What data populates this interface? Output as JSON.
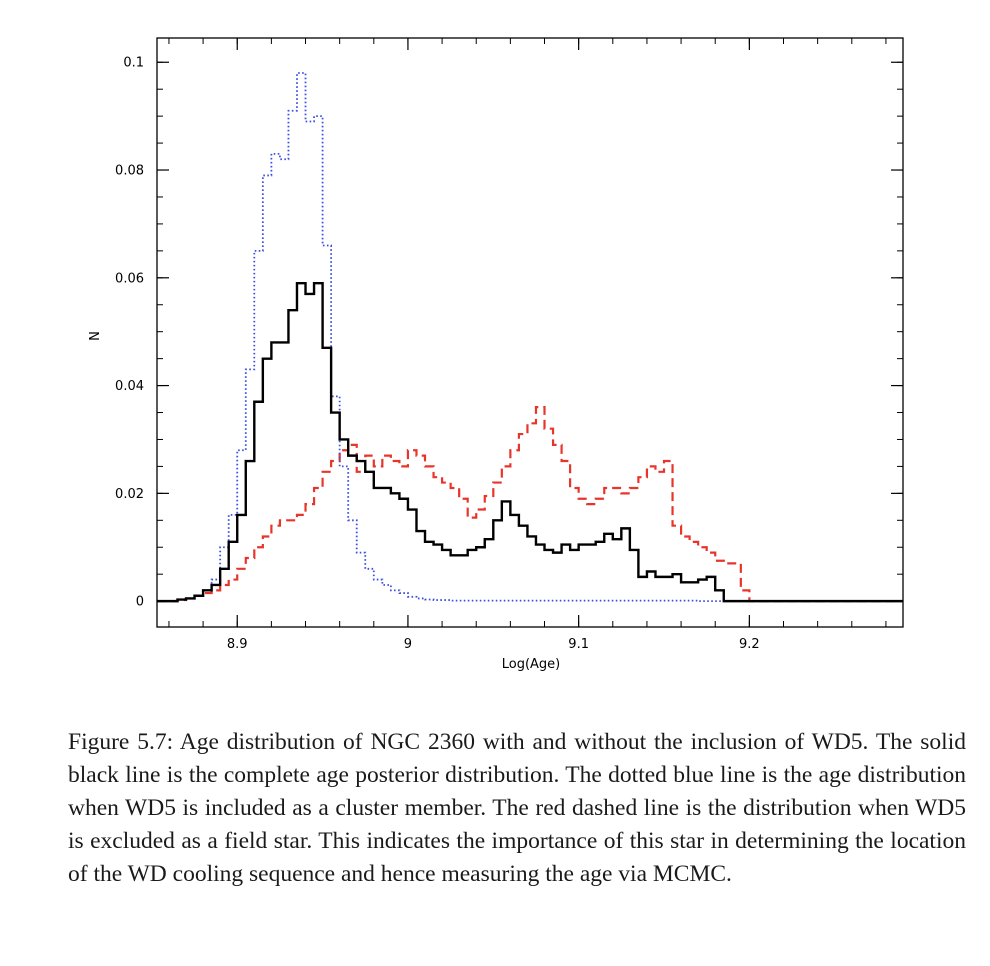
{
  "chart_data": {
    "type": "line",
    "step": true,
    "xlabel": "Log(Age)",
    "ylabel": "N",
    "xlim": [
      8.853,
      9.29
    ],
    "ylim": [
      -0.0048,
      0.1045
    ],
    "x_ticks": [
      {
        "value": 8.9,
        "label": "8.9"
      },
      {
        "value": 9.0,
        "label": "9"
      },
      {
        "value": 9.1,
        "label": "9.1"
      },
      {
        "value": 9.2,
        "label": "9.2"
      }
    ],
    "y_ticks": [
      {
        "value": 0,
        "label": "0"
      },
      {
        "value": 0.02,
        "label": "0.02"
      },
      {
        "value": 0.04,
        "label": "0.04"
      },
      {
        "value": 0.06,
        "label": "0.06"
      },
      {
        "value": 0.08,
        "label": "0.08"
      },
      {
        "value": 0.1,
        "label": "0.1"
      }
    ],
    "x_minor_step": 0.02,
    "y_minor_step": 0.005,
    "grid": false,
    "legend": "none",
    "bin_edges": [
      8.855,
      8.86,
      8.865,
      8.87,
      8.875,
      8.88,
      8.885,
      8.89,
      8.895,
      8.9,
      8.905,
      8.91,
      8.915,
      8.92,
      8.925,
      8.93,
      8.935,
      8.94,
      8.945,
      8.95,
      8.955,
      8.96,
      8.965,
      8.97,
      8.975,
      8.98,
      8.985,
      8.99,
      8.995,
      9.0,
      9.005,
      9.01,
      9.015,
      9.02,
      9.025,
      9.03,
      9.035,
      9.04,
      9.045,
      9.05,
      9.055,
      9.06,
      9.065,
      9.07,
      9.075,
      9.08,
      9.085,
      9.09,
      9.095,
      9.1,
      9.105,
      9.11,
      9.115,
      9.12,
      9.125,
      9.13,
      9.135,
      9.14,
      9.145,
      9.15,
      9.155,
      9.16,
      9.165,
      9.17,
      9.175,
      9.18,
      9.185,
      9.19,
      9.195,
      9.2,
      9.205,
      9.21,
      9.215,
      9.22,
      9.225,
      9.23,
      9.235,
      9.24,
      9.245,
      9.25,
      9.255,
      9.26,
      9.265,
      9.27,
      9.275,
      9.28,
      9.285,
      9.29
    ],
    "series": [
      {
        "style": "solid",
        "color": "#000000",
        "values": [
          0,
          0,
          0.0003,
          0.0005,
          0.001,
          0.002,
          0.003,
          0.006,
          0.011,
          0.016,
          0.026,
          0.037,
          0.045,
          0.048,
          0.048,
          0.054,
          0.059,
          0.057,
          0.059,
          0.047,
          0.035,
          0.03,
          0.027,
          0.026,
          0.024,
          0.021,
          0.021,
          0.02,
          0.019,
          0.017,
          0.013,
          0.011,
          0.0105,
          0.0095,
          0.0085,
          0.0085,
          0.0095,
          0.01,
          0.0115,
          0.015,
          0.0185,
          0.016,
          0.014,
          0.012,
          0.0105,
          0.0095,
          0.009,
          0.0105,
          0.0095,
          0.0105,
          0.0105,
          0.011,
          0.0125,
          0.0115,
          0.0135,
          0.0095,
          0.0045,
          0.0055,
          0.0045,
          0.0045,
          0.005,
          0.0035,
          0.0035,
          0.004,
          0.0045,
          0.002,
          0,
          0,
          0,
          0,
          0,
          0,
          0,
          0,
          0,
          0,
          0,
          0,
          0,
          0,
          0,
          0,
          0,
          0,
          0,
          0
        ]
      },
      {
        "style": "dotted",
        "color": "#3b4fe0",
        "values": [
          0,
          0,
          0.0003,
          0.0005,
          0.001,
          0.002,
          0.004,
          0.01,
          0.016,
          0.028,
          0.043,
          0.065,
          0.079,
          0.083,
          0.082,
          0.091,
          0.098,
          0.089,
          0.09,
          0.066,
          0.038,
          0.025,
          0.015,
          0.009,
          0.006,
          0.004,
          0.003,
          0.002,
          0.0015,
          0.0008,
          0.0005,
          0.0003,
          0.0002,
          0.0002,
          0.0001,
          0.0001,
          0.0001,
          0.0001,
          0.0001,
          0.0001,
          0.0001,
          0.0001,
          0.0001,
          0.0001,
          0.0001,
          0.0001,
          0.0001,
          0.0001,
          0.0001,
          0.0001,
          0.0001,
          0.0001,
          0.0001,
          0.0001,
          0.0001,
          0.0001,
          0.0001,
          0.0001,
          0.0001,
          0.0001,
          0.0001,
          0.0001,
          0.0001,
          0,
          0,
          0,
          0,
          0,
          0,
          0,
          0,
          0,
          0,
          0,
          0,
          0,
          0,
          0,
          0,
          0,
          0,
          0,
          0,
          0,
          0,
          0
        ]
      },
      {
        "style": "dashed",
        "color": "#e8352b",
        "values": [
          0,
          0,
          0.0002,
          0.0005,
          0.001,
          0.0015,
          0.002,
          0.003,
          0.004,
          0.006,
          0.008,
          0.01,
          0.012,
          0.014,
          0.015,
          0.015,
          0.016,
          0.018,
          0.021,
          0.024,
          0.026,
          0.028,
          0.029,
          0.024,
          0.027,
          0.025,
          0.027,
          0.026,
          0.025,
          0.028,
          0.027,
          0.025,
          0.023,
          0.022,
          0.021,
          0.019,
          0.0155,
          0.017,
          0.0195,
          0.022,
          0.025,
          0.028,
          0.031,
          0.033,
          0.036,
          0.032,
          0.029,
          0.026,
          0.021,
          0.019,
          0.018,
          0.019,
          0.021,
          0.021,
          0.02,
          0.021,
          0.023,
          0.025,
          0.024,
          0.026,
          0.014,
          0.012,
          0.011,
          0.01,
          0.009,
          0.0075,
          0.007,
          0.007,
          0.002,
          0,
          0,
          0,
          0,
          0,
          0,
          0,
          0,
          0,
          0,
          0,
          0,
          0,
          0,
          0,
          0,
          0
        ]
      }
    ]
  },
  "caption": "Figure 5.7: Age distribution of NGC 2360 with and without the inclusion of WD5. The solid black line is the complete age posterior distribution. The dotted blue line is the age distribution when WD5 is included as a cluster member. The red dashed line is the distribution when WD5 is excluded as a field star. This indicates the importance of this star in determining the location of the WD cooling sequence and hence measuring the age via MCMC."
}
